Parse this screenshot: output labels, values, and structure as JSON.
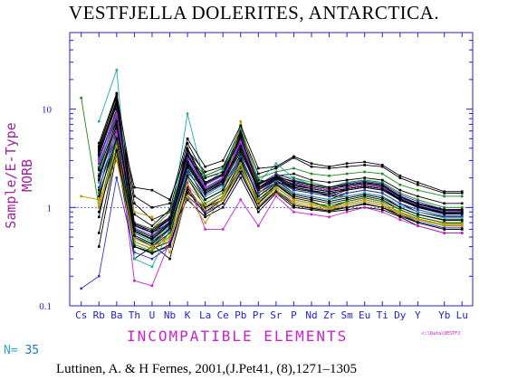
{
  "chart_data": {
    "type": "line",
    "title": "VESTFJELLA DOLERITES, ANTARCTICA.",
    "xlabel": "INCOMPATIBLE ELEMENTS",
    "ylabel": "Sample/E-Type MORB",
    "yscale": "log",
    "ylim": [
      0.1,
      60
    ],
    "yticks": [
      "0.1",
      "1",
      "10"
    ],
    "categories": [
      "Cs",
      "Rb",
      "Ba",
      "Th",
      "U",
      "Nb",
      "K",
      "La",
      "Ce",
      "Pb",
      "Pr",
      "Sr",
      "P",
      "Nd",
      "Zr",
      "Sm",
      "Eu",
      "Ti",
      "Dy",
      "Y",
      "Yb",
      "Lu"
    ],
    "x_positions": [
      1,
      2,
      3,
      4,
      5,
      6,
      7,
      8,
      9,
      10,
      11,
      12,
      13,
      14,
      15,
      16,
      17,
      18,
      19,
      20,
      21.5,
      22.5
    ],
    "reference_line": 1,
    "n_label": "N=",
    "n": "35",
    "file_note": "c:\\Data\\VESTFJ",
    "citation": "Luttinen, A. & H Fernes, 2001,(J.Pet41, (8),1271–1305",
    "series": [
      {
        "color": "#000000",
        "values": [
          null,
          4.0,
          14.0,
          0.7,
          0.6,
          0.8,
          4.0,
          1.8,
          2.2,
          5.5,
          1.6,
          2.0,
          1.5,
          1.4,
          1.3,
          1.5,
          1.6,
          1.5,
          1.2,
          1.0,
          0.9,
          0.9
        ]
      },
      {
        "color": "#000000",
        "values": [
          null,
          3.5,
          12.0,
          0.6,
          0.5,
          0.7,
          3.5,
          1.6,
          2.0,
          5.0,
          1.5,
          1.9,
          1.4,
          1.3,
          1.2,
          1.4,
          1.5,
          1.4,
          1.1,
          0.9,
          0.8,
          0.8
        ]
      },
      {
        "color": "#000000",
        "values": [
          null,
          3.0,
          10.0,
          0.55,
          0.45,
          0.6,
          3.0,
          1.4,
          1.8,
          4.5,
          1.4,
          1.8,
          1.6,
          1.5,
          1.3,
          1.3,
          1.4,
          1.3,
          1.0,
          0.85,
          0.75,
          0.75
        ]
      },
      {
        "color": "#000000",
        "values": [
          null,
          2.0,
          8.0,
          0.5,
          0.4,
          0.5,
          2.5,
          1.2,
          1.5,
          3.5,
          1.2,
          1.7,
          1.3,
          1.2,
          1.1,
          1.2,
          1.3,
          1.2,
          0.95,
          0.8,
          0.7,
          0.7
        ]
      },
      {
        "color": "#000000",
        "values": [
          null,
          1.2,
          6.0,
          0.45,
          0.38,
          0.45,
          2.0,
          1.0,
          1.3,
          3.0,
          1.1,
          1.6,
          1.2,
          1.1,
          1.0,
          1.1,
          1.2,
          1.1,
          0.9,
          0.75,
          0.65,
          0.65
        ]
      },
      {
        "color": "#000000",
        "values": [
          null,
          0.8,
          5.0,
          0.4,
          0.35,
          0.4,
          1.6,
          0.9,
          1.2,
          2.5,
          1.0,
          1.5,
          1.1,
          1.0,
          0.95,
          1.0,
          1.1,
          1.0,
          0.85,
          0.7,
          0.6,
          0.6
        ]
      },
      {
        "color": "#000000",
        "values": [
          null,
          0.4,
          3.5,
          0.3,
          0.4,
          0.55,
          1.2,
          0.8,
          1.0,
          2.0,
          0.9,
          1.4,
          1.0,
          0.95,
          0.9,
          0.95,
          1.0,
          0.95,
          0.8,
          0.65,
          0.55,
          0.55
        ]
      },
      {
        "color": "#000000",
        "values": [
          null,
          2.5,
          9.0,
          1.6,
          1.5,
          1.2,
          3.8,
          2.3,
          2.6,
          6.0,
          2.2,
          2.5,
          3.2,
          2.6,
          2.5,
          2.6,
          2.7,
          2.6,
          2.0,
          1.7,
          1.4,
          1.4
        ]
      },
      {
        "color": "#000000",
        "values": [
          null,
          1.5,
          6.5,
          0.65,
          0.55,
          0.7,
          2.8,
          1.5,
          1.9,
          4.0,
          1.7,
          2.1,
          2.2,
          1.9,
          1.8,
          1.9,
          2.0,
          1.9,
          1.5,
          1.3,
          1.1,
          1.1
        ]
      },
      {
        "color": "#000000",
        "values": [
          null,
          3.8,
          12.5,
          1.1,
          0.75,
          0.9,
          3.2,
          2.0,
          2.3,
          5.8,
          1.9,
          1.8,
          1.7,
          1.6,
          1.5,
          1.7,
          1.8,
          1.7,
          1.3,
          1.1,
          0.95,
          0.95
        ]
      },
      {
        "color": "#000000",
        "values": [
          null,
          0.55,
          4.0,
          0.5,
          0.42,
          0.3,
          1.4,
          1.0,
          1.2,
          2.8,
          1.1,
          1.7,
          1.25,
          1.15,
          1.0,
          1.15,
          1.25,
          1.15,
          0.95,
          0.8,
          0.7,
          0.7
        ]
      },
      {
        "color": "#000000",
        "values": [
          null,
          4.2,
          13.5,
          0.85,
          0.65,
          0.95,
          4.5,
          2.1,
          2.5,
          6.5,
          1.8,
          2.0,
          1.55,
          1.45,
          1.35,
          1.55,
          1.65,
          1.55,
          1.25,
          1.05,
          0.85,
          0.9
        ]
      },
      {
        "color": "#22aaaa",
        "values": [
          null,
          7.5,
          25.0,
          0.3,
          0.25,
          0.6,
          9.0,
          1.7,
          2.4,
          6.5,
          1.8,
          2.8,
          2.0,
          1.7,
          1.6,
          1.7,
          1.8,
          1.6,
          1.3,
          1.1,
          0.9,
          0.9
        ]
      },
      {
        "color": "#22aaaa",
        "values": [
          null,
          2.2,
          7.0,
          0.6,
          0.5,
          0.7,
          3.0,
          1.5,
          1.8,
          4.0,
          1.5,
          2.0,
          1.6,
          1.5,
          1.4,
          1.5,
          1.6,
          1.5,
          1.2,
          1.0,
          0.85,
          0.85
        ]
      },
      {
        "color": "#22aaaa",
        "values": [
          null,
          1.8,
          5.5,
          0.55,
          0.45,
          0.65,
          2.4,
          1.3,
          1.6,
          3.2,
          1.3,
          1.8,
          1.4,
          1.3,
          1.2,
          1.3,
          1.4,
          1.3,
          1.05,
          0.9,
          0.78,
          0.78
        ]
      },
      {
        "color": "#1a8a1a",
        "values": [
          13.0,
          1.0,
          5.0,
          0.42,
          0.36,
          0.55,
          2.2,
          1.6,
          2.0,
          3.6,
          1.6,
          2.1,
          2.0,
          1.8,
          1.6,
          1.8,
          1.9,
          1.8,
          1.4,
          1.2,
          1.0,
          1.0
        ]
      },
      {
        "color": "#1a8a1a",
        "values": [
          null,
          2.6,
          8.5,
          0.7,
          0.6,
          0.9,
          3.4,
          2.1,
          2.5,
          5.0,
          2.0,
          2.3,
          2.5,
          2.2,
          2.1,
          2.2,
          2.3,
          2.2,
          1.7,
          1.5,
          1.3,
          1.3
        ]
      },
      {
        "color": "#1a8a1a",
        "values": [
          null,
          1.4,
          4.5,
          0.5,
          0.42,
          0.6,
          2.0,
          1.1,
          1.4,
          2.6,
          1.2,
          1.6,
          1.2,
          1.1,
          1.05,
          1.15,
          1.25,
          1.15,
          0.95,
          0.8,
          0.7,
          0.7
        ]
      },
      {
        "color": "#3333cc",
        "values": [
          0.15,
          0.2,
          2.0,
          0.35,
          0.3,
          0.4,
          1.3,
          0.9,
          1.1,
          2.2,
          1.0,
          1.5,
          1.1,
          1.0,
          0.95,
          1.05,
          1.15,
          1.05,
          0.85,
          0.72,
          0.62,
          0.62
        ]
      },
      {
        "color": "#3333cc",
        "values": [
          null,
          3.2,
          9.5,
          0.65,
          0.55,
          0.75,
          3.6,
          1.7,
          2.1,
          4.8,
          1.7,
          2.2,
          1.9,
          1.7,
          1.6,
          1.75,
          1.85,
          1.75,
          1.35,
          1.15,
          0.95,
          0.95
        ]
      },
      {
        "color": "#3333cc",
        "values": [
          null,
          1.6,
          5.2,
          0.5,
          0.4,
          0.6,
          2.3,
          1.35,
          1.7,
          3.3,
          1.4,
          1.9,
          1.5,
          1.4,
          1.3,
          1.4,
          1.5,
          1.4,
          1.1,
          0.95,
          0.82,
          0.82
        ]
      },
      {
        "color": "#3333cc",
        "values": [
          null,
          2.8,
          8.0,
          0.62,
          0.52,
          0.72,
          3.1,
          1.55,
          1.95,
          4.3,
          1.6,
          2.0,
          1.75,
          1.6,
          1.5,
          1.6,
          1.7,
          1.6,
          1.25,
          1.05,
          0.9,
          0.9
        ]
      },
      {
        "color": "#cc22cc",
        "values": [
          null,
          2.0,
          6.0,
          0.18,
          0.16,
          0.45,
          1.8,
          0.6,
          0.6,
          1.2,
          0.65,
          1.3,
          0.9,
          0.85,
          0.8,
          0.9,
          1.0,
          0.9,
          0.75,
          0.65,
          0.55,
          0.55
        ]
      },
      {
        "color": "#cc22cc",
        "values": [
          null,
          3.0,
          9.0,
          0.7,
          0.55,
          0.8,
          3.3,
          1.6,
          2.0,
          4.6,
          1.6,
          2.1,
          1.7,
          1.6,
          1.5,
          1.6,
          1.7,
          1.6,
          1.3,
          1.1,
          0.92,
          0.92
        ]
      },
      {
        "color": "#bb9900",
        "values": [
          null,
          1.0,
          4.2,
          0.9,
          0.8,
          0.35,
          1.3,
          0.7,
          1.3,
          7.5,
          1.5,
          1.4,
          1.1,
          1.0,
          0.95,
          1.05,
          1.15,
          1.05,
          0.85,
          0.75,
          0.68,
          0.68
        ]
      },
      {
        "color": "#bb9900",
        "values": [
          null,
          1.1,
          3.5,
          0.48,
          0.4,
          0.5,
          1.7,
          1.05,
          1.3,
          2.8,
          1.15,
          1.6,
          1.2,
          1.1,
          1.0,
          1.1,
          1.2,
          1.1,
          0.9,
          0.77,
          0.67,
          0.67
        ]
      },
      {
        "color": "#bb9900",
        "values": [
          1.3,
          1.2,
          3.0,
          0.45,
          0.38,
          0.48,
          1.5,
          0.95,
          1.2,
          2.4,
          1.05,
          1.5,
          1.15,
          1.05,
          0.98,
          1.05,
          1.15,
          1.05,
          0.88,
          0.75,
          0.65,
          0.65
        ]
      },
      {
        "color": "#000000",
        "values": [
          null,
          1.9,
          7.0,
          0.58,
          0.48,
          0.68,
          2.7,
          1.45,
          1.85,
          3.9,
          1.55,
          2.0,
          1.65,
          1.55,
          1.45,
          1.55,
          1.65,
          1.55,
          1.2,
          1.02,
          0.88,
          0.88
        ]
      },
      {
        "color": "#000000",
        "values": [
          null,
          3.4,
          11.0,
          0.68,
          0.58,
          0.78,
          3.4,
          1.75,
          2.15,
          5.2,
          1.75,
          2.05,
          1.85,
          1.7,
          1.6,
          1.7,
          1.8,
          1.7,
          1.3,
          1.1,
          0.95,
          0.95
        ]
      },
      {
        "color": "#000000",
        "values": [
          null,
          0.9,
          3.8,
          0.4,
          0.34,
          0.42,
          1.5,
          0.85,
          1.1,
          2.3,
          0.98,
          1.45,
          1.05,
          0.98,
          0.92,
          1.0,
          1.08,
          1.0,
          0.82,
          0.7,
          0.6,
          0.6
        ]
      },
      {
        "color": "#000000",
        "values": [
          null,
          2.4,
          7.5,
          0.6,
          0.5,
          0.7,
          2.9,
          1.5,
          1.9,
          4.2,
          1.6,
          2.05,
          1.7,
          1.55,
          1.45,
          1.55,
          1.65,
          1.55,
          1.22,
          1.03,
          0.88,
          0.88
        ]
      },
      {
        "color": "#000000",
        "values": [
          null,
          1.3,
          5.0,
          0.52,
          0.43,
          0.62,
          2.1,
          1.2,
          1.5,
          3.1,
          1.3,
          1.75,
          1.35,
          1.25,
          1.15,
          1.25,
          1.35,
          1.25,
          1.0,
          0.85,
          0.74,
          0.74
        ]
      },
      {
        "color": "#000000",
        "values": [
          null,
          3.6,
          11.5,
          0.66,
          0.56,
          0.76,
          3.8,
          1.8,
          2.2,
          5.3,
          1.7,
          2.1,
          1.8,
          1.65,
          1.55,
          1.65,
          1.75,
          1.65,
          1.28,
          1.08,
          0.93,
          0.93
        ]
      },
      {
        "color": "#000000",
        "values": [
          null,
          2.1,
          6.8,
          0.57,
          0.47,
          0.67,
          2.6,
          1.4,
          1.75,
          3.7,
          1.5,
          1.95,
          1.6,
          1.48,
          1.4,
          1.5,
          1.6,
          1.5,
          1.18,
          1.0,
          0.86,
          0.86
        ]
      },
      {
        "color": "#000000",
        "values": [
          null,
          4.5,
          14.5,
          1.3,
          1.0,
          1.1,
          5.0,
          2.6,
          3.0,
          6.8,
          2.5,
          2.6,
          3.3,
          2.8,
          2.6,
          2.8,
          2.9,
          2.7,
          2.1,
          1.8,
          1.45,
          1.45
        ]
      }
    ]
  }
}
